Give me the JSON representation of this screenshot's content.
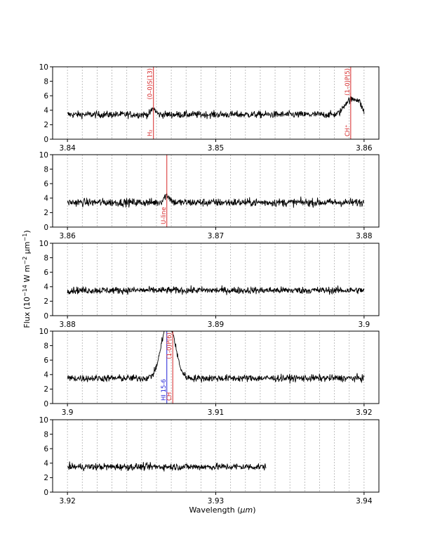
{
  "figure": {
    "ylabel": "Flux (10",
    "ylabel_exp1": "−14",
    "ylabel_mid": " W m",
    "ylabel_exp2": "−2",
    "ylabel_mu": " μm",
    "ylabel_exp3": "−1",
    "ylabel_end": ")",
    "xlabel_prefix": "Wavelength (",
    "xlabel_mu": "μm",
    "xlabel_suffix": ")"
  },
  "chart_data": [
    {
      "type": "line",
      "xlim": [
        3.839,
        3.861
      ],
      "ylim": [
        0,
        10
      ],
      "x_ticks": [
        3.84,
        3.85,
        3.86
      ],
      "x_tick_labels": [
        "3.84",
        "3.85",
        "3.86"
      ],
      "y_ticks": [
        0,
        2,
        4,
        6,
        8,
        10
      ],
      "y_tick_labels": [
        "0",
        "2",
        "4",
        "6",
        "8",
        "10"
      ],
      "grid_x_step": 0.001,
      "x_start": 3.84,
      "x_end": 3.86,
      "baseline": 3.4,
      "noise": 0.35,
      "features": [
        {
          "center": 3.8458,
          "height": 0.8,
          "width": 0.00015
        },
        {
          "center": 3.8589,
          "height": 1.7,
          "width": 0.0003
        },
        {
          "center": 3.8594,
          "height": 1.4,
          "width": 0.00025
        },
        {
          "center": 3.8597,
          "height": 1.0,
          "width": 0.0002
        }
      ],
      "lines": [
        {
          "x": 3.8458,
          "color": "#d62728",
          "label": "H₂ (0–0)S(13)",
          "label_top": "(0–0)S(13)",
          "label_bottom": "H₂"
        },
        {
          "x": 3.8591,
          "color": "#d62728",
          "label": "CH⁺ (1–0)P(5)",
          "label_top": "(1–0)P(5)",
          "label_bottom": "CH⁺"
        }
      ]
    },
    {
      "type": "line",
      "xlim": [
        3.859,
        3.881
      ],
      "ylim": [
        0,
        10
      ],
      "x_ticks": [
        3.86,
        3.87,
        3.88
      ],
      "x_tick_labels": [
        "3.86",
        "3.87",
        "3.88"
      ],
      "y_ticks": [
        0,
        2,
        4,
        6,
        8,
        10
      ],
      "y_tick_labels": [
        "0",
        "2",
        "4",
        "6",
        "8",
        "10"
      ],
      "grid_x_step": 0.001,
      "x_start": 3.86,
      "x_end": 3.88,
      "baseline": 3.4,
      "noise": 0.4,
      "features": [
        {
          "center": 3.8667,
          "height": 1.0,
          "width": 0.0002
        }
      ],
      "lines": [
        {
          "x": 3.8667,
          "color": "#d62728",
          "label": "U-line",
          "label_top": "",
          "label_bottom": "U-line"
        }
      ]
    },
    {
      "type": "line",
      "xlim": [
        3.879,
        3.901
      ],
      "ylim": [
        0,
        10
      ],
      "x_ticks": [
        3.88,
        3.89,
        3.9
      ],
      "x_tick_labels": [
        "3.88",
        "3.89",
        "3.9"
      ],
      "y_ticks": [
        0,
        2,
        4,
        6,
        8,
        10
      ],
      "y_tick_labels": [
        "0",
        "2",
        "4",
        "6",
        "8",
        "10"
      ],
      "grid_x_step": 0.001,
      "x_start": 3.88,
      "x_end": 3.9,
      "baseline": 3.5,
      "noise": 0.35,
      "features": [],
      "lines": []
    },
    {
      "type": "line",
      "xlim": [
        3.899,
        3.921
      ],
      "ylim": [
        0,
        10
      ],
      "x_ticks": [
        3.9,
        3.91,
        3.92
      ],
      "x_tick_labels": [
        "3.9",
        "3.91",
        "3.92"
      ],
      "y_ticks": [
        0,
        2,
        4,
        6,
        8,
        10
      ],
      "y_tick_labels": [
        "0",
        "2",
        "4",
        "6",
        "8",
        "10"
      ],
      "grid_x_step": 0.001,
      "x_start": 3.9,
      "x_end": 3.92,
      "baseline": 3.5,
      "noise": 0.35,
      "features": [
        {
          "center": 3.9068,
          "height": 8.0,
          "width": 0.00045
        }
      ],
      "lines": [
        {
          "x": 3.9067,
          "color": "#1f1fd6",
          "label": "HI 15-6",
          "label_top": "",
          "label_bottom": "HI 15-6"
        },
        {
          "x": 3.9071,
          "color": "#d62728",
          "label": "CH (1-0)P(6)",
          "label_top": "(1-0)P(6)",
          "label_bottom": "CH"
        }
      ]
    },
    {
      "type": "line",
      "xlim": [
        3.919,
        3.941
      ],
      "ylim": [
        0,
        10
      ],
      "x_ticks": [
        3.92,
        3.93,
        3.94
      ],
      "x_tick_labels": [
        "3.92",
        "3.93",
        "3.94"
      ],
      "y_ticks": [
        0,
        2,
        4,
        6,
        8,
        10
      ],
      "y_tick_labels": [
        "0",
        "2",
        "4",
        "6",
        "8",
        "10"
      ],
      "grid_x_step": 0.001,
      "x_start": 3.92,
      "x_end": 3.9334,
      "baseline": 3.5,
      "noise": 0.35,
      "features": [],
      "lines": []
    }
  ]
}
